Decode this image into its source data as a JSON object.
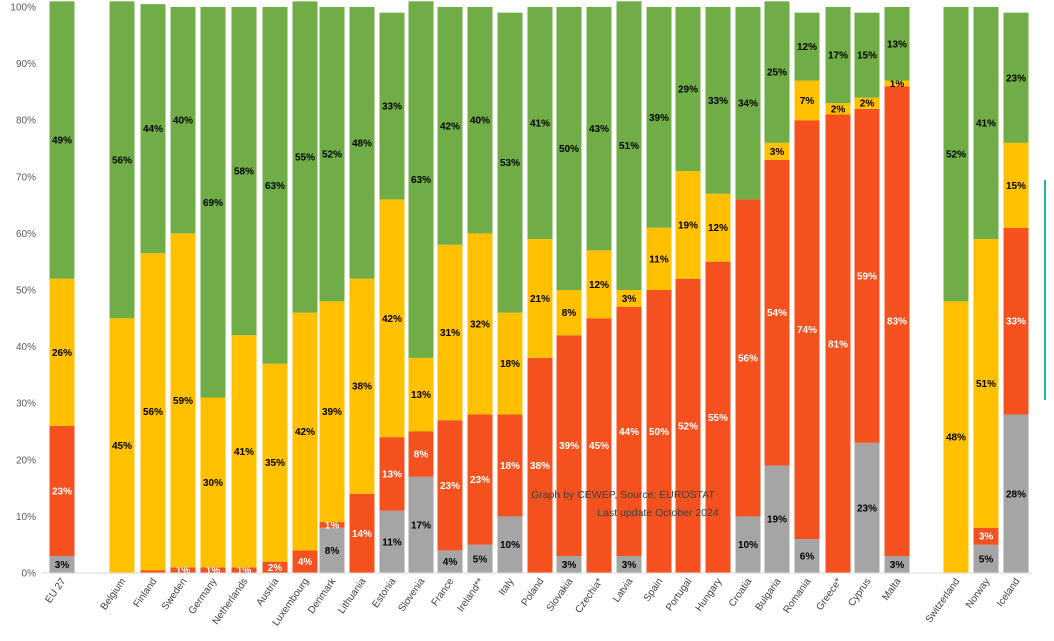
{
  "chart_data": {
    "type": "bar",
    "stacked": true,
    "percent": true,
    "ylim": [
      0,
      100
    ],
    "yticks": [
      "0%",
      "10%",
      "20%",
      "30%",
      "40%",
      "50%",
      "60%",
      "70%",
      "80%",
      "90%",
      "100%"
    ],
    "grid": false,
    "annotations": [
      "Graph by CEWEP, Source: EUROSTAT",
      "Last update October 2024"
    ],
    "categories": [
      "EU 27",
      "Belgium",
      "Finland",
      "Sweden",
      "Germany",
      "Netherlands",
      "Austria",
      "Luxembourg",
      "Denmark",
      "Lithuania",
      "Estonia",
      "Slovenia",
      "France",
      "Ireland**",
      "Italy",
      "Poland",
      "Slovakia",
      "Czechia*",
      "Latvia",
      "Spain",
      "Portugal",
      "Hungary",
      "Croatia",
      "Bulgaria",
      "Romania",
      "Greece*",
      "Cyprus",
      "Malta",
      "Switzerland",
      "Norway",
      "Iceland"
    ],
    "series": [
      {
        "name": "Grey",
        "color": "#a5a5a5",
        "text_color": "#000000",
        "values": [
          3,
          0,
          0,
          0,
          0,
          0,
          0,
          0,
          8,
          0,
          11,
          17,
          4,
          5,
          10,
          0,
          3,
          0,
          3,
          0,
          0,
          0,
          10,
          19,
          6,
          0,
          23,
          3,
          0,
          5,
          28
        ],
        "labels": [
          "3%",
          "",
          "",
          "",
          "",
          "",
          "",
          "",
          "8%",
          "",
          "11%",
          "17%",
          "4%",
          "5%",
          "10%",
          "",
          "3%",
          "",
          "3%",
          "",
          "",
          "",
          "10%",
          "19%",
          "6%",
          "",
          "23%",
          "3%",
          "",
          "5%",
          "28%"
        ]
      },
      {
        "name": "Red",
        "color": "#f4511e",
        "text_color": "#ffffff",
        "values": [
          23,
          0,
          0.5,
          1,
          1,
          1,
          2,
          4,
          1,
          14,
          13,
          8,
          23,
          23,
          18,
          38,
          39,
          45,
          44,
          50,
          52,
          55,
          56,
          54,
          74,
          81,
          59,
          83,
          0,
          3,
          33
        ],
        "labels": [
          "23%",
          "",
          "",
          "1%",
          "1%",
          "1%",
          "2%",
          "4%",
          "1%",
          "14%",
          "13%",
          "8%",
          "23%",
          "23%",
          "18%",
          "38%",
          "39%",
          "45%",
          "44%",
          "50%",
          "52%",
          "55%",
          "56%",
          "54%",
          "74%",
          "81%",
          "59%",
          "83%",
          "",
          "3%",
          "33%"
        ]
      },
      {
        "name": "Yellow",
        "color": "#ffc000",
        "text_color": "#000000",
        "values": [
          26,
          45,
          56,
          59,
          30,
          41,
          35,
          42,
          39,
          38,
          42,
          13,
          31,
          32,
          18,
          21,
          8,
          12,
          3,
          11,
          19,
          12,
          0,
          3,
          7,
          2,
          2,
          1,
          48,
          51,
          15
        ],
        "labels": [
          "26%",
          "45%",
          "56%",
          "59%",
          "30%",
          "41%",
          "35%",
          "42%",
          "39%",
          "38%",
          "42%",
          "13%",
          "31%",
          "32%",
          "18%",
          "21%",
          "8%",
          "12%",
          "3%",
          "11%",
          "19%",
          "12%",
          "",
          "3%",
          "7%",
          "2%",
          "2%",
          "1%",
          "48%",
          "51%",
          "15%"
        ]
      },
      {
        "name": "Green",
        "color": "#70ad47",
        "text_color": "#000000",
        "values": [
          49,
          56,
          44,
          40,
          69,
          58,
          63,
          55,
          52,
          48,
          33,
          63,
          42,
          40,
          53,
          41,
          50,
          43,
          51,
          39,
          29,
          33,
          34,
          25,
          12,
          17,
          15,
          13,
          52,
          41,
          23
        ],
        "labels": [
          "49%",
          "56%",
          "44%",
          "40%",
          "69%",
          "58%",
          "63%",
          "55%",
          "52%",
          "48%",
          "33%",
          "63%",
          "42%",
          "40%",
          "53%",
          "41%",
          "50%",
          "43%",
          "51%",
          "39%",
          "29%",
          "33%",
          "34%",
          "25%",
          "12%",
          "17%",
          "15%",
          "13%",
          "52%",
          "41%",
          "23%"
        ]
      }
    ]
  }
}
